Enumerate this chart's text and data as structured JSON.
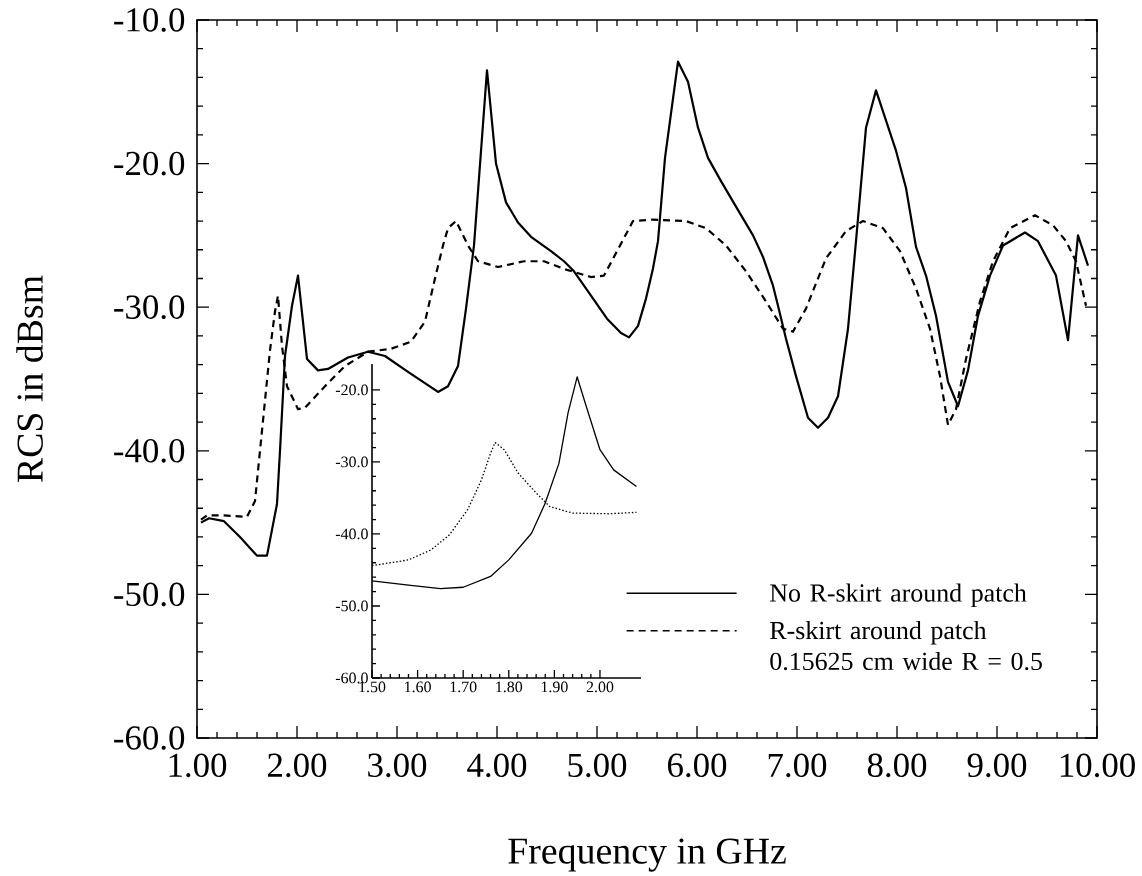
{
  "chart_data": [
    {
      "type": "line",
      "xlabel": "Frequency in GHz",
      "ylabel": "RCS in dBsm",
      "xlim": [
        1,
        10
      ],
      "ylim": [
        -60,
        -10
      ],
      "xticks": [
        {
          "value": 1,
          "label": "1.00"
        },
        {
          "value": 2,
          "label": "2.00"
        },
        {
          "value": 3,
          "label": "3.00"
        },
        {
          "value": 4,
          "label": "4.00"
        },
        {
          "value": 5,
          "label": "5.00"
        },
        {
          "value": 6,
          "label": "6.00"
        },
        {
          "value": 7,
          "label": "7.00"
        },
        {
          "value": 8,
          "label": "8.00"
        },
        {
          "value": 9,
          "label": "9.00"
        },
        {
          "value": 10,
          "label": "10.00"
        }
      ],
      "yticks": [
        {
          "value": -60,
          "label": "-60.0"
        },
        {
          "value": -50,
          "label": "-50.0"
        },
        {
          "value": -40,
          "label": "-40.0"
        },
        {
          "value": -30,
          "label": "-30.0"
        },
        {
          "value": -20,
          "label": "-20.0"
        },
        {
          "value": -10,
          "label": "-10.0"
        }
      ],
      "legend": "bottom right",
      "series": [
        {
          "name": "No R-skirt around patch",
          "color": "#000000",
          "line_style": "solid",
          "x": [
            1.04,
            1.12,
            1.27,
            1.43,
            1.6,
            1.7,
            1.8,
            1.83,
            1.88,
            1.95,
            2.01,
            2.1,
            2.21,
            2.31,
            2.51,
            2.71,
            2.88,
            3.11,
            3.41,
            3.51,
            3.61,
            3.69,
            3.77,
            3.9,
            3.99,
            4.09,
            4.21,
            4.34,
            4.54,
            4.67,
            4.77,
            4.94,
            5.1,
            5.24,
            5.32,
            5.41,
            5.49,
            5.56,
            5.61,
            5.68,
            5.81,
            5.91,
            6.01,
            6.11,
            6.23,
            6.39,
            6.56,
            6.66,
            6.76,
            6.81,
            6.89,
            6.99,
            7.11,
            7.21,
            7.31,
            7.41,
            7.51,
            7.59,
            7.69,
            7.79,
            7.89,
            7.99,
            8.09,
            8.19,
            8.29,
            8.39,
            8.51,
            8.61,
            8.71,
            8.81,
            8.93,
            9.06,
            9.28,
            9.41,
            9.59,
            9.71,
            9.81,
            9.91
          ],
          "values": [
            -45.0,
            -44.7,
            -44.9,
            -46.0,
            -47.3,
            -47.3,
            -43.7,
            -40.0,
            -33.4,
            -29.9,
            -27.8,
            -33.6,
            -34.4,
            -34.3,
            -33.5,
            -33.1,
            -33.4,
            -34.5,
            -35.9,
            -35.5,
            -34.1,
            -30.1,
            -25.7,
            -13.5,
            -20.0,
            -22.7,
            -24.1,
            -25.1,
            -26.1,
            -26.8,
            -27.5,
            -29.2,
            -30.8,
            -31.8,
            -32.1,
            -31.3,
            -29.4,
            -27.3,
            -25.4,
            -19.6,
            -12.9,
            -14.3,
            -17.5,
            -19.6,
            -21.1,
            -23.0,
            -25.0,
            -26.5,
            -28.5,
            -29.9,
            -32.2,
            -34.8,
            -37.7,
            -38.4,
            -37.7,
            -36.2,
            -31.5,
            -25.4,
            -17.5,
            -14.9,
            -17.0,
            -19.1,
            -21.7,
            -25.8,
            -27.8,
            -30.6,
            -35.2,
            -36.9,
            -34.4,
            -30.6,
            -27.8,
            -25.7,
            -24.8,
            -25.4,
            -27.8,
            -32.3,
            -25.0,
            -27.1
          ]
        },
        {
          "name": "R-skirt around patch 0.15625 cm wide R = 0.5",
          "color": "#000000",
          "line_style": "dashed",
          "x": [
            1.04,
            1.1,
            1.27,
            1.5,
            1.58,
            1.63,
            1.68,
            1.73,
            1.78,
            1.81,
            1.85,
            1.9,
            2.01,
            2.08,
            2.28,
            2.48,
            2.71,
            2.94,
            3.14,
            3.28,
            3.38,
            3.46,
            3.51,
            3.59,
            3.71,
            3.81,
            4.01,
            4.27,
            4.47,
            4.7,
            4.94,
            5.07,
            5.2,
            5.36,
            5.56,
            5.89,
            6.09,
            6.29,
            6.49,
            6.69,
            6.86,
            6.96,
            7.09,
            7.29,
            7.49,
            7.66,
            7.86,
            8.03,
            8.19,
            8.33,
            8.43,
            8.51,
            8.59,
            8.69,
            8.83,
            8.96,
            9.13,
            9.38,
            9.56,
            9.69,
            9.79,
            9.89
          ],
          "values": [
            -44.8,
            -44.5,
            -44.5,
            -44.6,
            -43.5,
            -40.0,
            -36.5,
            -33.0,
            -30.3,
            -29.2,
            -32.7,
            -35.5,
            -37.1,
            -37.0,
            -35.5,
            -34.1,
            -33.1,
            -32.9,
            -32.4,
            -31.0,
            -28.0,
            -25.7,
            -24.5,
            -24.0,
            -25.7,
            -26.8,
            -27.2,
            -26.8,
            -26.8,
            -27.4,
            -27.9,
            -27.8,
            -26.1,
            -24.0,
            -23.9,
            -24.0,
            -24.5,
            -25.7,
            -27.5,
            -29.6,
            -31.5,
            -31.7,
            -30.1,
            -26.6,
            -24.7,
            -24.0,
            -24.5,
            -26.1,
            -28.7,
            -31.5,
            -34.8,
            -38.2,
            -37.1,
            -33.6,
            -29.6,
            -26.8,
            -24.5,
            -23.6,
            -24.3,
            -25.4,
            -26.8,
            -29.9
          ]
        }
      ]
    },
    {
      "type": "line",
      "xlim": [
        1.5,
        2.09
      ],
      "ylim": [
        -60,
        -16.4
      ],
      "xticks": [
        {
          "value": 1.5,
          "label": "1.50"
        },
        {
          "value": 1.6,
          "label": "1.60"
        },
        {
          "value": 1.7,
          "label": "1.70"
        },
        {
          "value": 1.8,
          "label": "1.80"
        },
        {
          "value": 1.9,
          "label": "1.90"
        },
        {
          "value": 2.0,
          "label": "2.00"
        }
      ],
      "yticks": [
        {
          "value": -60,
          "label": "-60.0"
        },
        {
          "value": -50,
          "label": "-50.0"
        },
        {
          "value": -40,
          "label": "-40.0"
        },
        {
          "value": -30,
          "label": "-30.0"
        },
        {
          "value": -20,
          "label": "-20.0"
        }
      ],
      "series": [
        {
          "color": "#000000",
          "line_style": "solid",
          "x": [
            1.5,
            1.58,
            1.65,
            1.7,
            1.76,
            1.8,
            1.85,
            1.88,
            1.91,
            1.93,
            1.95,
            1.97,
            2.0,
            2.03,
            2.08
          ],
          "values": [
            -46.5,
            -47.1,
            -47.6,
            -47.4,
            -45.9,
            -43.6,
            -39.9,
            -35.7,
            -30.2,
            -23.2,
            -18.2,
            -22.3,
            -28.3,
            -31.1,
            -33.4
          ]
        },
        {
          "color": "#000000",
          "line_style": "dotted",
          "x": [
            1.5,
            1.58,
            1.63,
            1.67,
            1.71,
            1.74,
            1.76,
            1.77,
            1.79,
            1.82,
            1.86,
            1.89,
            1.94,
            2.02,
            2.08
          ],
          "values": [
            -44.4,
            -43.6,
            -42.2,
            -40.1,
            -36.6,
            -32.5,
            -28.8,
            -27.3,
            -28.3,
            -31.5,
            -34.3,
            -36.2,
            -37.1,
            -37.2,
            -37.0
          ]
        }
      ]
    }
  ]
}
